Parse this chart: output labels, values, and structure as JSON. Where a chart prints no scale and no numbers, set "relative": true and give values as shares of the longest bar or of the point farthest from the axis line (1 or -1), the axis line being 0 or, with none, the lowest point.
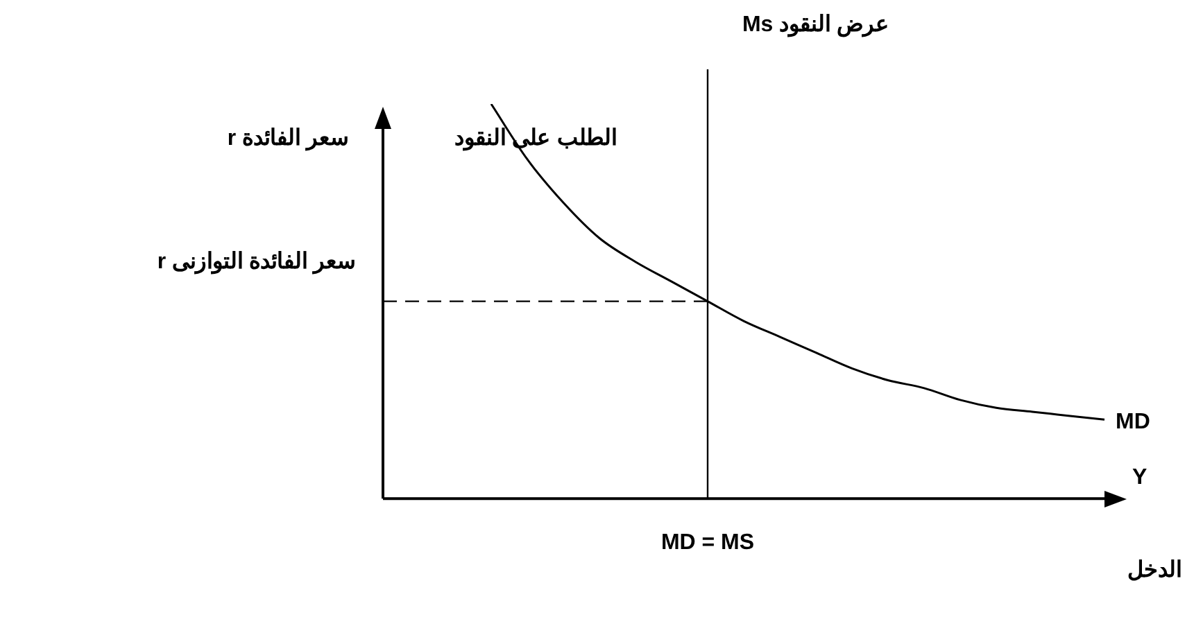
{
  "chart_data": {
    "type": "line",
    "relative": true,
    "legend": false,
    "grid": false,
    "ylabel": "سعر الفائدة r",
    "xlabel": "Y",
    "categories": [
      null,
      null,
      null,
      null,
      null,
      null,
      null,
      null,
      null,
      null,
      null,
      null,
      null,
      null,
      null,
      null,
      null,
      null,
      null,
      null,
      null
    ],
    "series": [
      {
        "name": "MD",
        "color": "#000000",
        "line_style": "solid",
        "values": [
          null,
          null,
          null,
          1,
          0.86,
          0.75,
          0.66,
          0.6,
          0.55,
          0.5,
          0.45,
          0.41,
          0.37,
          0.33,
          0.3,
          0.28,
          0.25,
          0.23,
          0.22,
          0.21,
          0.2
        ]
      }
    ],
    "ref_lines": [
      {
        "axis": "y",
        "value": 0.5,
        "label": "سعر الفائدة التوازنى r",
        "color": "#000000",
        "line_style": "dashed"
      }
    ],
    "annotations": [
      "MD = MS",
      "الطلب على النقود",
      "الدخل",
      "عرض النقود Ms"
    ]
  }
}
